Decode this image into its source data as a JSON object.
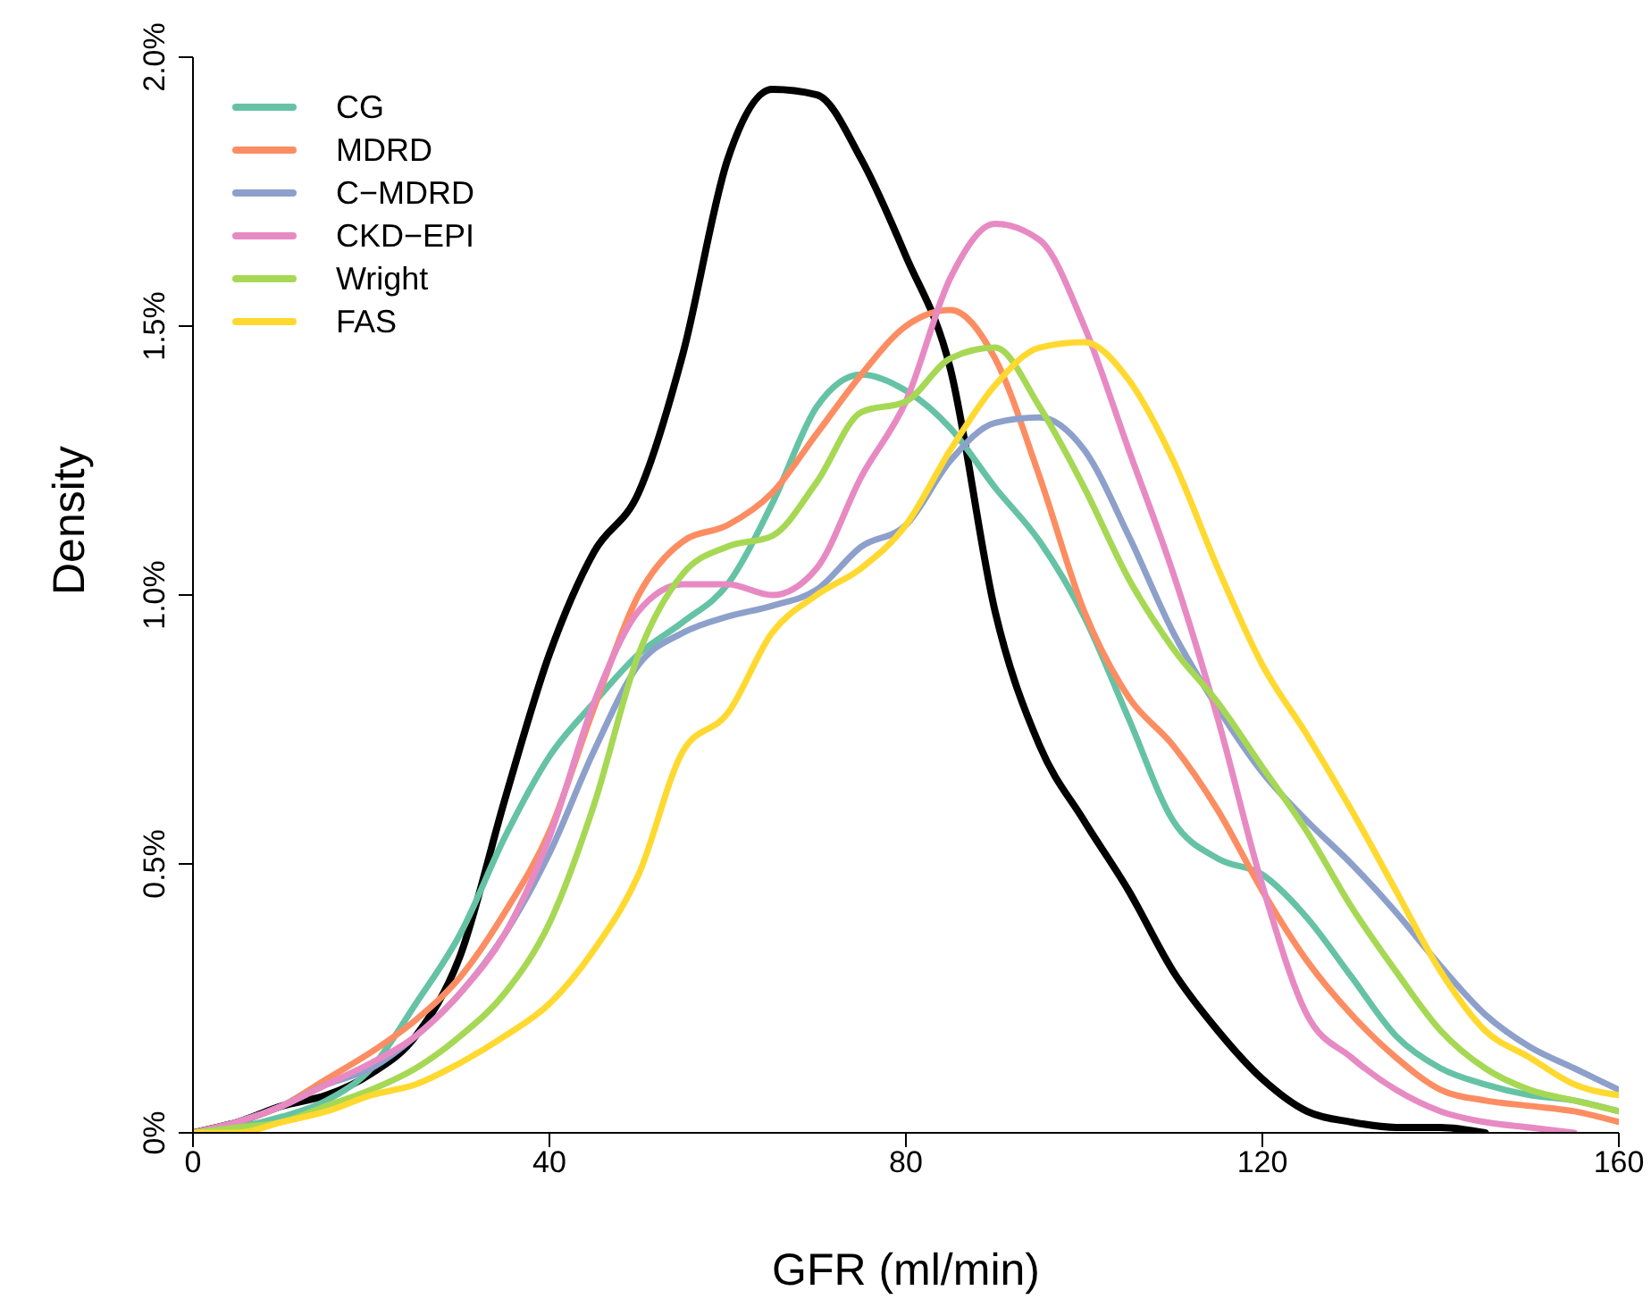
{
  "chart_data": {
    "type": "line",
    "xlabel": "GFR (ml/min)",
    "ylabel": "Density",
    "x": [
      0,
      5,
      10,
      15,
      20,
      25,
      30,
      35,
      40,
      45,
      50,
      55,
      60,
      65,
      70,
      75,
      80,
      85,
      90,
      95,
      100,
      105,
      110,
      115,
      120,
      125,
      130,
      135,
      140,
      145,
      150,
      155,
      160
    ],
    "series": [
      {
        "color": "#000000",
        "values": [
          0,
          0.02,
          0.05,
          0.07,
          0.11,
          0.18,
          0.33,
          0.62,
          0.89,
          1.08,
          1.19,
          1.45,
          1.81,
          1.94,
          1.93,
          1.81,
          1.63,
          1.42,
          0.97,
          0.72,
          0.58,
          0.45,
          0.3,
          0.19,
          0.1,
          0.04,
          0.02,
          0.01,
          0.01,
          0,
          null,
          null,
          null
        ]
      },
      {
        "name": "CG",
        "color": "#66c2a5",
        "values": [
          0,
          0.01,
          0.03,
          0.06,
          0.12,
          0.24,
          0.37,
          0.55,
          0.7,
          0.8,
          0.89,
          0.95,
          1.02,
          1.17,
          1.35,
          1.41,
          1.38,
          1.31,
          1.2,
          1.1,
          0.96,
          0.77,
          0.58,
          0.51,
          0.48,
          0.4,
          0.29,
          0.18,
          0.12,
          0.09,
          0.07,
          0.06,
          0.04
        ]
      },
      {
        "name": "MDRD",
        "color": "#fc8d62",
        "values": [
          0,
          0.02,
          0.05,
          0.1,
          0.15,
          0.21,
          0.29,
          0.41,
          0.56,
          0.79,
          1.0,
          1.1,
          1.13,
          1.19,
          1.3,
          1.41,
          1.5,
          1.53,
          1.44,
          1.22,
          0.97,
          0.81,
          0.72,
          0.6,
          0.45,
          0.32,
          0.22,
          0.14,
          0.08,
          0.06,
          0.05,
          0.04,
          0.02
        ]
      },
      {
        "name": "C−MDRD",
        "color": "#8da0cb",
        "values": [
          0,
          0.02,
          0.05,
          0.09,
          0.12,
          0.18,
          0.26,
          0.37,
          0.52,
          0.71,
          0.87,
          0.93,
          0.96,
          0.98,
          1.01,
          1.09,
          1.13,
          1.25,
          1.32,
          1.33,
          1.27,
          1.11,
          0.93,
          0.79,
          0.67,
          0.58,
          0.5,
          0.41,
          0.31,
          0.22,
          0.16,
          0.12,
          0.08
        ]
      },
      {
        "name": "CKD−EPI",
        "color": "#e78ac3",
        "values": [
          0,
          0.02,
          0.05,
          0.09,
          0.13,
          0.18,
          0.26,
          0.37,
          0.55,
          0.8,
          0.97,
          1.02,
          1.02,
          1.0,
          1.05,
          1.22,
          1.36,
          1.59,
          1.69,
          1.66,
          1.5,
          1.27,
          1.04,
          0.77,
          0.46,
          0.22,
          0.14,
          0.08,
          0.04,
          0.02,
          0.01,
          0,
          null
        ]
      },
      {
        "name": "Wright",
        "color": "#a6d854",
        "values": [
          0,
          0.01,
          0.02,
          0.05,
          0.08,
          0.12,
          0.18,
          0.26,
          0.39,
          0.61,
          0.89,
          1.04,
          1.09,
          1.11,
          1.21,
          1.34,
          1.36,
          1.44,
          1.46,
          1.35,
          1.2,
          1.03,
          0.9,
          0.8,
          0.68,
          0.56,
          0.42,
          0.3,
          0.19,
          0.12,
          0.08,
          0.06,
          0.04
        ]
      },
      {
        "name": "FAS",
        "color": "#ffd92f",
        "values": [
          0,
          0.0,
          0.02,
          0.04,
          0.07,
          0.09,
          0.13,
          0.18,
          0.24,
          0.34,
          0.48,
          0.71,
          0.78,
          0.93,
          1.0,
          1.05,
          1.13,
          1.27,
          1.39,
          1.46,
          1.47,
          1.4,
          1.25,
          1.05,
          0.87,
          0.74,
          0.6,
          0.45,
          0.3,
          0.19,
          0.14,
          0.09,
          0.07
        ]
      }
    ],
    "xlim": [
      0,
      160
    ],
    "xticks": [
      0,
      40,
      80,
      120,
      160
    ],
    "ylim": [
      0,
      2
    ],
    "yticks": [
      {
        "value": 0,
        "label": "0%"
      },
      {
        "value": 0.5,
        "label": "0.5%"
      },
      {
        "value": 1,
        "label": "1.0%"
      },
      {
        "value": 1.5,
        "label": "1.5%"
      },
      {
        "value": 2,
        "label": "2.0%"
      }
    ],
    "grid": false,
    "legend": "top left",
    "marker": "none",
    "line_style": "solid"
  }
}
